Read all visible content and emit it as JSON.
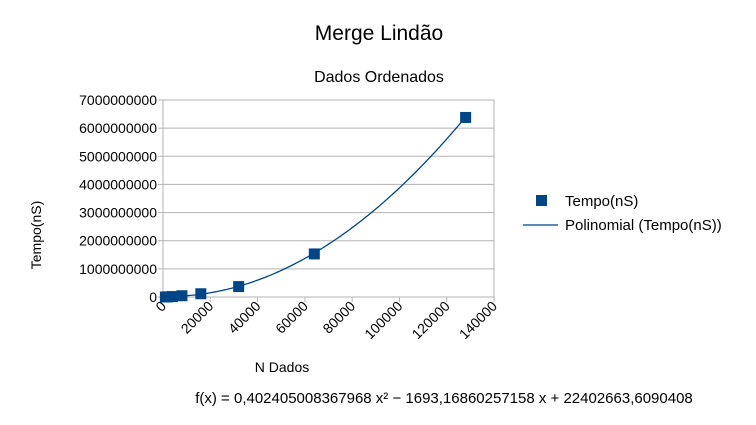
{
  "chart_data": {
    "type": "scatter",
    "title": "Merge Lindão",
    "subtitle": "Dados Ordenados",
    "xlabel": "N Dados",
    "ylabel": "Tempo(nS)",
    "xlim": [
      0,
      140000
    ],
    "ylim": [
      0,
      7000000000
    ],
    "x_ticks": [
      0,
      20000,
      40000,
      60000,
      80000,
      100000,
      120000,
      140000
    ],
    "x_tick_labels": [
      "0",
      "20000",
      "40000",
      "60000",
      "80000",
      "100000",
      "120000",
      "140000"
    ],
    "y_ticks": [
      0,
      1000000000,
      2000000000,
      3000000000,
      4000000000,
      5000000000,
      6000000000,
      7000000000
    ],
    "y_tick_labels": [
      "0",
      "1000000000",
      "2000000000",
      "3000000000",
      "4000000000",
      "5000000000",
      "6000000000",
      "7000000000"
    ],
    "grid": "horizontal",
    "legend_position": "right",
    "series": [
      {
        "name": "Tempo(nS)",
        "color": "#004586",
        "marker": "square",
        "x": [
          1000,
          2000,
          4000,
          8000,
          16000,
          32000,
          64000,
          128000
        ],
        "y": [
          1000000,
          4000000,
          15000000,
          45000000,
          115000000,
          370000000,
          1530000000,
          6380000000
        ]
      }
    ],
    "trendline": {
      "name": "Polinomial (Tempo(nS))",
      "type": "polynomial",
      "color": "#004586",
      "coefficients": [
        0.402405008367968,
        -1693.16860257158,
        22402663.6090408
      ],
      "equation": "f(x) = 0,402405008367968 x² − 1693,16860257158 x + 22402663,6090408"
    }
  }
}
